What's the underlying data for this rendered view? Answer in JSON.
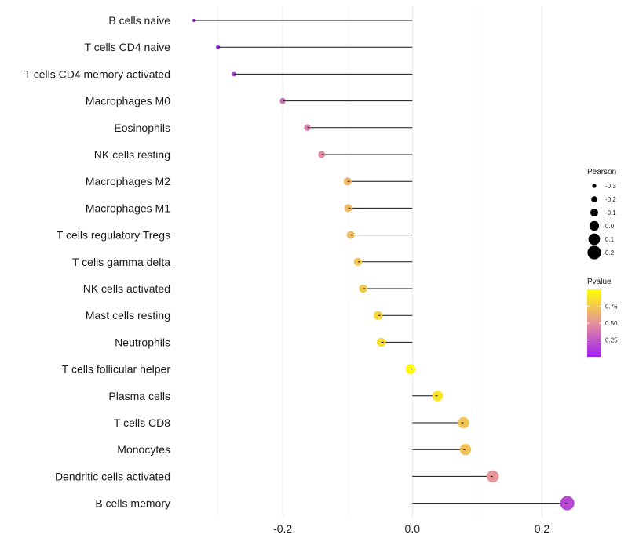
{
  "chart_data": {
    "type": "lollipop",
    "categories": [
      "B cells naive",
      "T cells CD4 naive",
      "T cells CD4 memory activated",
      "Macrophages M0",
      "Eosinophils",
      "NK cells resting",
      "Macrophages M2",
      "Macrophages M1",
      "T cells regulatory  Tregs ",
      "T cells gamma delta",
      "NK cells activated",
      "Mast cells resting",
      "Neutrophils",
      "T cells follicular helper",
      "Plasma cells",
      "T cells CD8",
      "Monocytes",
      "Dendritic cells activated",
      "B cells memory"
    ],
    "pearson": [
      -0.337,
      -0.3,
      -0.275,
      -0.2,
      -0.162,
      -0.14,
      -0.1,
      -0.099,
      -0.095,
      -0.084,
      -0.076,
      -0.053,
      -0.048,
      -0.003,
      0.039,
      0.079,
      0.082,
      0.124,
      0.239
    ],
    "pvalue": [
      0.02,
      0.05,
      0.12,
      0.35,
      0.42,
      0.48,
      0.68,
      0.68,
      0.69,
      0.74,
      0.75,
      0.82,
      0.83,
      0.99,
      0.88,
      0.73,
      0.72,
      0.52,
      0.18
    ],
    "xlim": [
      -0.36,
      0.26
    ],
    "xticks": [
      -0.2,
      0.0,
      0.2
    ],
    "xtick_labels": [
      "-0.2",
      "0.0",
      "0.2"
    ],
    "xlabel": "",
    "ylabel": "",
    "grid": true,
    "legend_size": {
      "title": "Pearson",
      "values": [
        -0.3,
        -0.2,
        -0.1,
        0.0,
        0.1,
        0.2
      ],
      "labels": [
        "-0.3",
        "-0.2",
        "-0.1",
        "0.0",
        "0.1",
        "0.2"
      ]
    },
    "legend_color": {
      "title": "Pvalue",
      "ticks": [
        0.25,
        0.5,
        0.75
      ],
      "tick_labels": [
        "0.25",
        "0.50",
        "0.75"
      ],
      "range": [
        0.0,
        1.0
      ],
      "colors": {
        "low": "#a020f0",
        "mid": "#e4929e",
        "high": "#ffff00"
      }
    }
  }
}
